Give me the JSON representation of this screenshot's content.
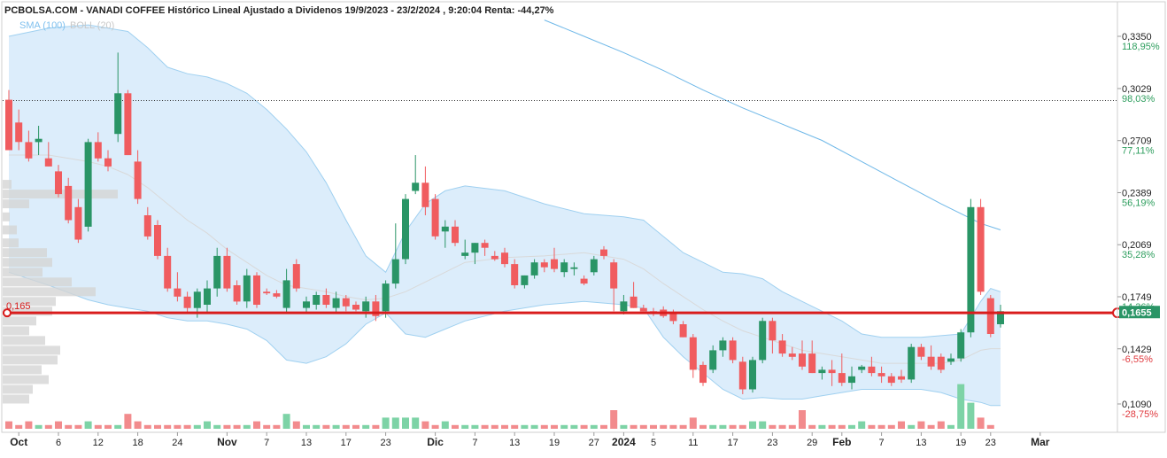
{
  "chart_data": {
    "type": "candlestick",
    "title": "PCBOLSA.COM - VANADI COFFEE Histórico Lineal Ajustado a Dividenos 19/9/2023 - 23/2/2024 , 9:20:04 Renta: -44,27%",
    "indicators": {
      "sma_label": "SMA (100)",
      "boll_label": "BOLL (20)"
    },
    "y_ticks": [
      {
        "price": "0,3350",
        "pct": "118,95%",
        "v": 0.335
      },
      {
        "price": "0,3029",
        "pct": "98,03%",
        "v": 0.3029
      },
      {
        "price": "0,2709",
        "pct": "77,11%",
        "v": 0.2709
      },
      {
        "price": "0,2389",
        "pct": "56,19%",
        "v": 0.2389
      },
      {
        "price": "0,2069",
        "pct": "35,28%",
        "v": 0.2069
      },
      {
        "price": "0,1749",
        "pct": "14,36%",
        "v": 0.1749
      },
      {
        "price": "0,1429",
        "pct": "-6,55%",
        "v": 0.1429
      },
      {
        "price": "0,1090",
        "pct": "-28,75%",
        "v": 0.109
      }
    ],
    "ylim": [
      0.1,
      0.35
    ],
    "x_ticks": [
      {
        "label": "Oct",
        "i": 1,
        "bold": true
      },
      {
        "label": "6",
        "i": 5,
        "bold": false
      },
      {
        "label": "12",
        "i": 9,
        "bold": false
      },
      {
        "label": "18",
        "i": 13,
        "bold": false
      },
      {
        "label": "24",
        "i": 17,
        "bold": false
      },
      {
        "label": "Nov",
        "i": 22,
        "bold": true
      },
      {
        "label": "7",
        "i": 26,
        "bold": false
      },
      {
        "label": "13",
        "i": 30,
        "bold": false
      },
      {
        "label": "17",
        "i": 34,
        "bold": false
      },
      {
        "label": "23",
        "i": 38,
        "bold": false
      },
      {
        "label": "Dic",
        "i": 43,
        "bold": true
      },
      {
        "label": "7",
        "i": 47,
        "bold": false
      },
      {
        "label": "13",
        "i": 51,
        "bold": false
      },
      {
        "label": "19",
        "i": 55,
        "bold": false
      },
      {
        "label": "27",
        "i": 59,
        "bold": false
      },
      {
        "label": "2024",
        "i": 62,
        "bold": true
      },
      {
        "label": "5",
        "i": 65,
        "bold": false
      },
      {
        "label": "11",
        "i": 69,
        "bold": false
      },
      {
        "label": "17",
        "i": 73,
        "bold": false
      },
      {
        "label": "23",
        "i": 77,
        "bold": false
      },
      {
        "label": "29",
        "i": 81,
        "bold": false
      },
      {
        "label": "Feb",
        "i": 84,
        "bold": true
      },
      {
        "label": "7",
        "i": 88,
        "bold": false
      },
      {
        "label": "13",
        "i": 92,
        "bold": false
      },
      {
        "label": "19",
        "i": 96,
        "bold": false
      },
      {
        "label": "23",
        "i": 99,
        "bold": false
      },
      {
        "label": "Mar",
        "i": 104,
        "bold": true
      }
    ],
    "support_level": {
      "label": "0,165",
      "value": 0.165
    },
    "last_price": {
      "label": "0,1655",
      "value": 0.1655
    },
    "reference_level": 0.2955,
    "candles": [
      [
        0.296,
        0.302,
        0.265,
        0.265
      ],
      [
        0.282,
        0.29,
        0.265,
        0.27
      ],
      [
        0.27,
        0.277,
        0.258,
        0.26
      ],
      [
        0.27,
        0.28,
        0.262,
        0.272
      ],
      [
        0.26,
        0.27,
        0.255,
        0.255
      ],
      [
        0.252,
        0.256,
        0.236,
        0.238
      ],
      [
        0.243,
        0.248,
        0.22,
        0.222
      ],
      [
        0.23,
        0.235,
        0.208,
        0.21
      ],
      [
        0.218,
        0.272,
        0.215,
        0.27
      ],
      [
        0.27,
        0.276,
        0.258,
        0.26
      ],
      [
        0.26,
        0.265,
        0.252,
        0.255
      ],
      [
        0.275,
        0.325,
        0.27,
        0.3
      ],
      [
        0.3,
        0.302,
        0.262,
        0.262
      ],
      [
        0.258,
        0.265,
        0.232,
        0.235
      ],
      [
        0.225,
        0.23,
        0.21,
        0.212
      ],
      [
        0.219,
        0.222,
        0.198,
        0.2
      ],
      [
        0.2,
        0.205,
        0.178,
        0.18
      ],
      [
        0.18,
        0.19,
        0.172,
        0.175
      ],
      [
        0.175,
        0.178,
        0.165,
        0.168
      ],
      [
        0.168,
        0.18,
        0.162,
        0.178
      ],
      [
        0.17,
        0.185,
        0.165,
        0.18
      ],
      [
        0.18,
        0.205,
        0.175,
        0.2
      ],
      [
        0.2,
        0.205,
        0.178,
        0.18
      ],
      [
        0.182,
        0.185,
        0.17,
        0.172
      ],
      [
        0.172,
        0.192,
        0.168,
        0.188
      ],
      [
        0.188,
        0.19,
        0.168,
        0.17
      ],
      [
        0.178,
        0.18,
        0.176,
        0.177
      ],
      [
        0.177,
        0.179,
        0.174,
        0.175
      ],
      [
        0.168,
        0.192,
        0.165,
        0.185
      ],
      [
        0.195,
        0.198,
        0.178,
        0.18
      ],
      [
        0.168,
        0.175,
        0.165,
        0.172
      ],
      [
        0.17,
        0.178,
        0.167,
        0.176
      ],
      [
        0.176,
        0.18,
        0.168,
        0.17
      ],
      [
        0.168,
        0.178,
        0.165,
        0.174
      ],
      [
        0.174,
        0.176,
        0.166,
        0.169
      ],
      [
        0.17,
        0.172,
        0.166,
        0.167
      ],
      [
        0.166,
        0.175,
        0.162,
        0.172
      ],
      [
        0.172,
        0.176,
        0.16,
        0.163
      ],
      [
        0.166,
        0.185,
        0.162,
        0.183
      ],
      [
        0.183,
        0.22,
        0.18,
        0.198
      ],
      [
        0.198,
        0.238,
        0.195,
        0.235
      ],
      [
        0.24,
        0.262,
        0.238,
        0.245
      ],
      [
        0.245,
        0.255,
        0.225,
        0.23
      ],
      [
        0.235,
        0.238,
        0.21,
        0.212
      ],
      [
        0.215,
        0.222,
        0.205,
        0.218
      ],
      [
        0.218,
        0.222,
        0.206,
        0.208
      ],
      [
        0.2,
        0.21,
        0.198,
        0.202
      ],
      [
        0.202,
        0.208,
        0.195,
        0.208
      ],
      [
        0.208,
        0.21,
        0.2,
        0.205
      ],
      [
        0.2,
        0.203,
        0.197,
        0.198
      ],
      [
        0.202,
        0.205,
        0.193,
        0.195
      ],
      [
        0.195,
        0.198,
        0.18,
        0.182
      ],
      [
        0.182,
        0.188,
        0.18,
        0.188
      ],
      [
        0.188,
        0.198,
        0.186,
        0.196
      ],
      [
        0.196,
        0.198,
        0.19,
        0.193
      ],
      [
        0.198,
        0.205,
        0.19,
        0.192
      ],
      [
        0.19,
        0.198,
        0.187,
        0.196
      ],
      [
        0.192,
        0.196,
        0.188,
        0.193
      ],
      [
        0.186,
        0.188,
        0.182,
        0.183
      ],
      [
        0.19,
        0.2,
        0.188,
        0.198
      ],
      [
        0.204,
        0.206,
        0.198,
        0.2
      ],
      [
        0.196,
        0.198,
        0.166,
        0.18
      ],
      [
        0.166,
        0.176,
        0.164,
        0.172
      ],
      [
        0.175,
        0.184,
        0.168,
        0.168
      ],
      [
        0.168,
        0.17,
        0.166,
        0.166
      ],
      [
        0.166,
        0.168,
        0.163,
        0.165
      ],
      [
        0.167,
        0.169,
        0.162,
        0.163
      ],
      [
        0.165,
        0.167,
        0.158,
        0.16
      ],
      [
        0.158,
        0.16,
        0.15,
        0.15
      ],
      [
        0.15,
        0.152,
        0.125,
        0.13
      ],
      [
        0.133,
        0.135,
        0.12,
        0.122
      ],
      [
        0.13,
        0.145,
        0.128,
        0.142
      ],
      [
        0.142,
        0.15,
        0.138,
        0.148
      ],
      [
        0.148,
        0.15,
        0.134,
        0.136
      ],
      [
        0.135,
        0.138,
        0.115,
        0.118
      ],
      [
        0.118,
        0.138,
        0.116,
        0.136
      ],
      [
        0.136,
        0.162,
        0.134,
        0.16
      ],
      [
        0.16,
        0.162,
        0.14,
        0.148
      ],
      [
        0.148,
        0.152,
        0.138,
        0.14
      ],
      [
        0.14,
        0.144,
        0.136,
        0.138
      ],
      [
        0.14,
        0.148,
        0.13,
        0.132
      ],
      [
        0.14,
        0.148,
        0.128,
        0.128
      ],
      [
        0.128,
        0.132,
        0.124,
        0.13
      ],
      [
        0.13,
        0.136,
        0.12,
        0.128
      ],
      [
        0.128,
        0.14,
        0.12,
        0.122
      ],
      [
        0.122,
        0.132,
        0.118,
        0.126
      ],
      [
        0.13,
        0.133,
        0.128,
        0.132
      ],
      [
        0.132,
        0.138,
        0.126,
        0.128
      ],
      [
        0.128,
        0.132,
        0.122,
        0.126
      ],
      [
        0.126,
        0.128,
        0.12,
        0.122
      ],
      [
        0.126,
        0.13,
        0.122,
        0.124
      ],
      [
        0.124,
        0.146,
        0.122,
        0.144
      ],
      [
        0.144,
        0.146,
        0.136,
        0.138
      ],
      [
        0.138,
        0.145,
        0.13,
        0.132
      ],
      [
        0.138,
        0.14,
        0.128,
        0.13
      ],
      [
        0.135,
        0.14,
        0.133,
        0.137
      ],
      [
        0.137,
        0.155,
        0.135,
        0.153
      ],
      [
        0.153,
        0.235,
        0.15,
        0.23
      ],
      [
        0.23,
        0.235,
        0.176,
        0.178
      ],
      [
        0.174,
        0.176,
        0.15,
        0.152
      ],
      [
        0.158,
        0.17,
        0.156,
        0.166
      ]
    ],
    "volumes": [
      2,
      1,
      2,
      1,
      1,
      2,
      1,
      1,
      2,
      1,
      1,
      1,
      4,
      2,
      1,
      1,
      1,
      1,
      1,
      1,
      2,
      1,
      1,
      1,
      1,
      2,
      1,
      1,
      4,
      2,
      1,
      1,
      1,
      1,
      1,
      1,
      1,
      1,
      3,
      3,
      3,
      3,
      2,
      1,
      2,
      1,
      1,
      1,
      1,
      1,
      1,
      1,
      1,
      1,
      1,
      1,
      1,
      1,
      1,
      1,
      1,
      5,
      1,
      1,
      1,
      1,
      1,
      1,
      1,
      3,
      1,
      1,
      1,
      1,
      1,
      2,
      2,
      1,
      1,
      1,
      5,
      1,
      1,
      1,
      1,
      1,
      2,
      1,
      1,
      1,
      2,
      1,
      2,
      1,
      2,
      1,
      12,
      7,
      3,
      1
    ],
    "sma100": [
      [
        54,
        0.345
      ],
      [
        58,
        0.335
      ],
      [
        62,
        0.325
      ],
      [
        66,
        0.314
      ],
      [
        70,
        0.302
      ],
      [
        74,
        0.291
      ],
      [
        78,
        0.281
      ],
      [
        82,
        0.271
      ],
      [
        86,
        0.258
      ],
      [
        90,
        0.245
      ],
      [
        94,
        0.232
      ],
      [
        98,
        0.22
      ],
      [
        100,
        0.216
      ]
    ],
    "boll_upper": [
      [
        0,
        0.335
      ],
      [
        4,
        0.34
      ],
      [
        8,
        0.342
      ],
      [
        10,
        0.34
      ],
      [
        12,
        0.338
      ],
      [
        14,
        0.328
      ],
      [
        16,
        0.316
      ],
      [
        18,
        0.312
      ],
      [
        20,
        0.31
      ],
      [
        22,
        0.306
      ],
      [
        24,
        0.3
      ],
      [
        26,
        0.29
      ],
      [
        28,
        0.278
      ],
      [
        30,
        0.264
      ],
      [
        32,
        0.245
      ],
      [
        34,
        0.222
      ],
      [
        36,
        0.2
      ],
      [
        38,
        0.19
      ],
      [
        40,
        0.215
      ],
      [
        42,
        0.232
      ],
      [
        44,
        0.24
      ],
      [
        46,
        0.243
      ],
      [
        50,
        0.24
      ],
      [
        54,
        0.232
      ],
      [
        58,
        0.226
      ],
      [
        62,
        0.224
      ],
      [
        64,
        0.222
      ],
      [
        66,
        0.212
      ],
      [
        68,
        0.202
      ],
      [
        70,
        0.196
      ],
      [
        72,
        0.19
      ],
      [
        74,
        0.189
      ],
      [
        76,
        0.186
      ],
      [
        78,
        0.178
      ],
      [
        80,
        0.172
      ],
      [
        82,
        0.166
      ],
      [
        84,
        0.16
      ],
      [
        86,
        0.152
      ],
      [
        88,
        0.15
      ],
      [
        90,
        0.15
      ],
      [
        92,
        0.15
      ],
      [
        94,
        0.151
      ],
      [
        96,
        0.152
      ],
      [
        98,
        0.172
      ],
      [
        99,
        0.18
      ],
      [
        100,
        0.178
      ]
    ],
    "boll_lower": [
      [
        0,
        0.19
      ],
      [
        4,
        0.182
      ],
      [
        8,
        0.173
      ],
      [
        10,
        0.17
      ],
      [
        12,
        0.168
      ],
      [
        14,
        0.166
      ],
      [
        16,
        0.162
      ],
      [
        18,
        0.16
      ],
      [
        20,
        0.16
      ],
      [
        22,
        0.158
      ],
      [
        24,
        0.155
      ],
      [
        26,
        0.148
      ],
      [
        28,
        0.136
      ],
      [
        30,
        0.134
      ],
      [
        32,
        0.138
      ],
      [
        34,
        0.146
      ],
      [
        36,
        0.158
      ],
      [
        38,
        0.165
      ],
      [
        40,
        0.152
      ],
      [
        42,
        0.15
      ],
      [
        44,
        0.155
      ],
      [
        46,
        0.16
      ],
      [
        50,
        0.166
      ],
      [
        54,
        0.17
      ],
      [
        58,
        0.172
      ],
      [
        62,
        0.17
      ],
      [
        64,
        0.168
      ],
      [
        66,
        0.15
      ],
      [
        68,
        0.138
      ],
      [
        70,
        0.128
      ],
      [
        72,
        0.118
      ],
      [
        74,
        0.112
      ],
      [
        76,
        0.113
      ],
      [
        78,
        0.112
      ],
      [
        80,
        0.112
      ],
      [
        82,
        0.114
      ],
      [
        84,
        0.116
      ],
      [
        86,
        0.118
      ],
      [
        88,
        0.118
      ],
      [
        90,
        0.118
      ],
      [
        92,
        0.118
      ],
      [
        94,
        0.116
      ],
      [
        96,
        0.112
      ],
      [
        98,
        0.11
      ],
      [
        99,
        0.108
      ],
      [
        100,
        0.108
      ]
    ],
    "boll_middle": [
      [
        0,
        0.262
      ],
      [
        4,
        0.262
      ],
      [
        8,
        0.258
      ],
      [
        10,
        0.255
      ],
      [
        12,
        0.25
      ],
      [
        14,
        0.242
      ],
      [
        16,
        0.232
      ],
      [
        18,
        0.222
      ],
      [
        20,
        0.214
      ],
      [
        22,
        0.204
      ],
      [
        24,
        0.196
      ],
      [
        26,
        0.188
      ],
      [
        28,
        0.182
      ],
      [
        30,
        0.18
      ],
      [
        32,
        0.178
      ],
      [
        34,
        0.175
      ],
      [
        36,
        0.173
      ],
      [
        38,
        0.174
      ],
      [
        40,
        0.178
      ],
      [
        42,
        0.184
      ],
      [
        44,
        0.19
      ],
      [
        46,
        0.196
      ],
      [
        50,
        0.199
      ],
      [
        54,
        0.2
      ],
      [
        58,
        0.202
      ],
      [
        62,
        0.198
      ],
      [
        64,
        0.192
      ],
      [
        66,
        0.183
      ],
      [
        68,
        0.175
      ],
      [
        70,
        0.167
      ],
      [
        72,
        0.16
      ],
      [
        74,
        0.154
      ],
      [
        76,
        0.15
      ],
      [
        78,
        0.146
      ],
      [
        80,
        0.142
      ],
      [
        82,
        0.14
      ],
      [
        84,
        0.138
      ],
      [
        86,
        0.136
      ],
      [
        88,
        0.134
      ],
      [
        90,
        0.134
      ],
      [
        92,
        0.134
      ],
      [
        94,
        0.134
      ],
      [
        96,
        0.136
      ],
      [
        98,
        0.142
      ],
      [
        99,
        0.143
      ],
      [
        100,
        0.143
      ]
    ],
    "volume_profile": [
      [
        0.244,
        10
      ],
      [
        0.238,
        130
      ],
      [
        0.232,
        30
      ],
      [
        0.224,
        8
      ],
      [
        0.216,
        16
      ],
      [
        0.208,
        18
      ],
      [
        0.202,
        50
      ],
      [
        0.196,
        56
      ],
      [
        0.19,
        45
      ],
      [
        0.184,
        78
      ],
      [
        0.178,
        105
      ],
      [
        0.172,
        60
      ],
      [
        0.166,
        56
      ],
      [
        0.16,
        38
      ],
      [
        0.154,
        30
      ],
      [
        0.148,
        48
      ],
      [
        0.142,
        65
      ],
      [
        0.136,
        62
      ],
      [
        0.13,
        44
      ],
      [
        0.124,
        52
      ],
      [
        0.118,
        34
      ],
      [
        0.112,
        30
      ]
    ],
    "colors": {
      "up": "#2a9566",
      "down": "#f05c5f",
      "band_fill": "#dcedfb",
      "band_stroke": "#9fd0f0",
      "sma": "#6fb8e8",
      "middle": "#d9d9d9",
      "support": "#d91c1c",
      "vol_up": "#7dd3a6",
      "vol_down": "#f28b8d",
      "profile": "#d4d4d4"
    }
  }
}
